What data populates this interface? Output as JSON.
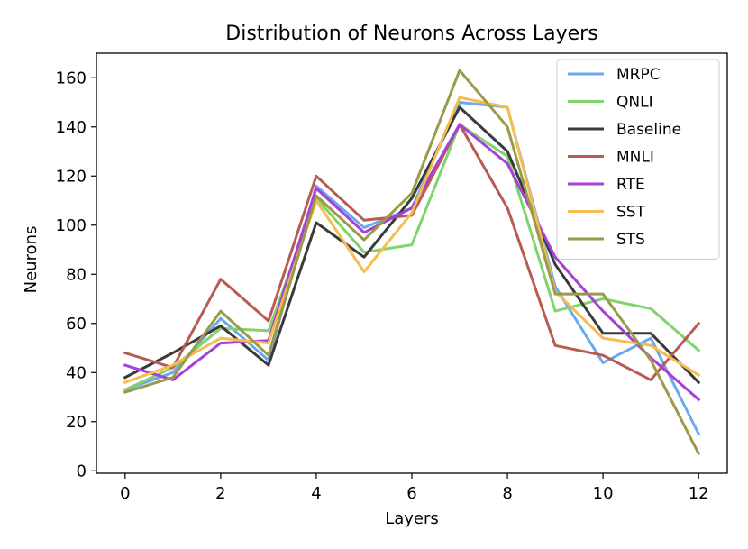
{
  "chart_data": {
    "type": "line",
    "title": "Distribution of Neurons Across Layers",
    "xlabel": "Layers",
    "ylabel": "Neurons",
    "x": [
      0,
      1,
      2,
      3,
      4,
      5,
      6,
      7,
      8,
      9,
      10,
      11,
      12
    ],
    "xlim": [
      -0.6,
      12.6
    ],
    "ylim": [
      -1,
      170
    ],
    "xticks": [
      "0",
      "2",
      "4",
      "6",
      "8",
      "10",
      "12"
    ],
    "yticks": [
      "0",
      "20",
      "40",
      "60",
      "80",
      "100",
      "120",
      "140",
      "160"
    ],
    "grid": false,
    "legend_position": "top-right",
    "series": [
      {
        "name": "MRPC",
        "color": "#6aa9f0",
        "values": [
          33,
          40,
          62,
          45,
          116,
          99,
          107,
          150,
          148,
          75,
          44,
          54,
          15
        ]
      },
      {
        "name": "QNLI",
        "color": "#7fd46b",
        "values": [
          33,
          42,
          58,
          57,
          111,
          89,
          92,
          141,
          128,
          65,
          70,
          66,
          49
        ]
      },
      {
        "name": "Baseline",
        "color": "#3a3a3a",
        "values": [
          38,
          48,
          59,
          43,
          101,
          87,
          111,
          148,
          130,
          84,
          56,
          56,
          36
        ]
      },
      {
        "name": "MNLI",
        "color": "#b85b52",
        "values": [
          48,
          42,
          78,
          61,
          120,
          102,
          104,
          141,
          107,
          51,
          47,
          37,
          60
        ]
      },
      {
        "name": "RTE",
        "color": "#a640d6",
        "values": [
          43,
          37,
          52,
          53,
          115,
          97,
          107,
          141,
          125,
          87,
          65,
          46,
          29
        ]
      },
      {
        "name": "SST",
        "color": "#f5bd4f",
        "values": [
          36,
          43,
          54,
          52,
          110,
          81,
          105,
          152,
          148,
          73,
          54,
          51,
          39
        ]
      },
      {
        "name": "STS",
        "color": "#9a9a48",
        "values": [
          32,
          38,
          65,
          47,
          112,
          94,
          113,
          163,
          140,
          72,
          72,
          45,
          7
        ]
      }
    ]
  }
}
